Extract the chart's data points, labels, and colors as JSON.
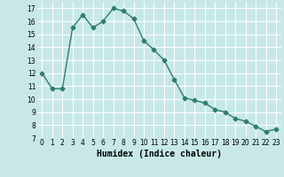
{
  "x": [
    0,
    1,
    2,
    3,
    4,
    5,
    6,
    7,
    8,
    9,
    10,
    11,
    12,
    13,
    14,
    15,
    16,
    17,
    18,
    19,
    20,
    21,
    22,
    23
  ],
  "y": [
    12,
    10.8,
    10.8,
    15.5,
    16.5,
    15.5,
    16.0,
    17.0,
    16.8,
    16.2,
    14.5,
    13.8,
    13.0,
    11.5,
    10.1,
    9.9,
    9.7,
    9.2,
    9.0,
    8.5,
    8.3,
    7.9,
    7.5,
    7.7
  ],
  "line_color": "#2e7d6e",
  "marker": "D",
  "marker_size": 2.5,
  "line_width": 1.0,
  "background_color": "#c8e8e8",
  "grid_color": "#ffffff",
  "xlabel": "Humidex (Indice chaleur)",
  "xlim": [
    -0.5,
    23.5
  ],
  "ylim": [
    7,
    17.5
  ],
  "yticks": [
    7,
    8,
    9,
    10,
    11,
    12,
    13,
    14,
    15,
    16,
    17
  ],
  "xticks": [
    0,
    1,
    2,
    3,
    4,
    5,
    6,
    7,
    8,
    9,
    10,
    11,
    12,
    13,
    14,
    15,
    16,
    17,
    18,
    19,
    20,
    21,
    22,
    23
  ],
  "tick_fontsize": 5.5,
  "label_fontsize": 7.0
}
